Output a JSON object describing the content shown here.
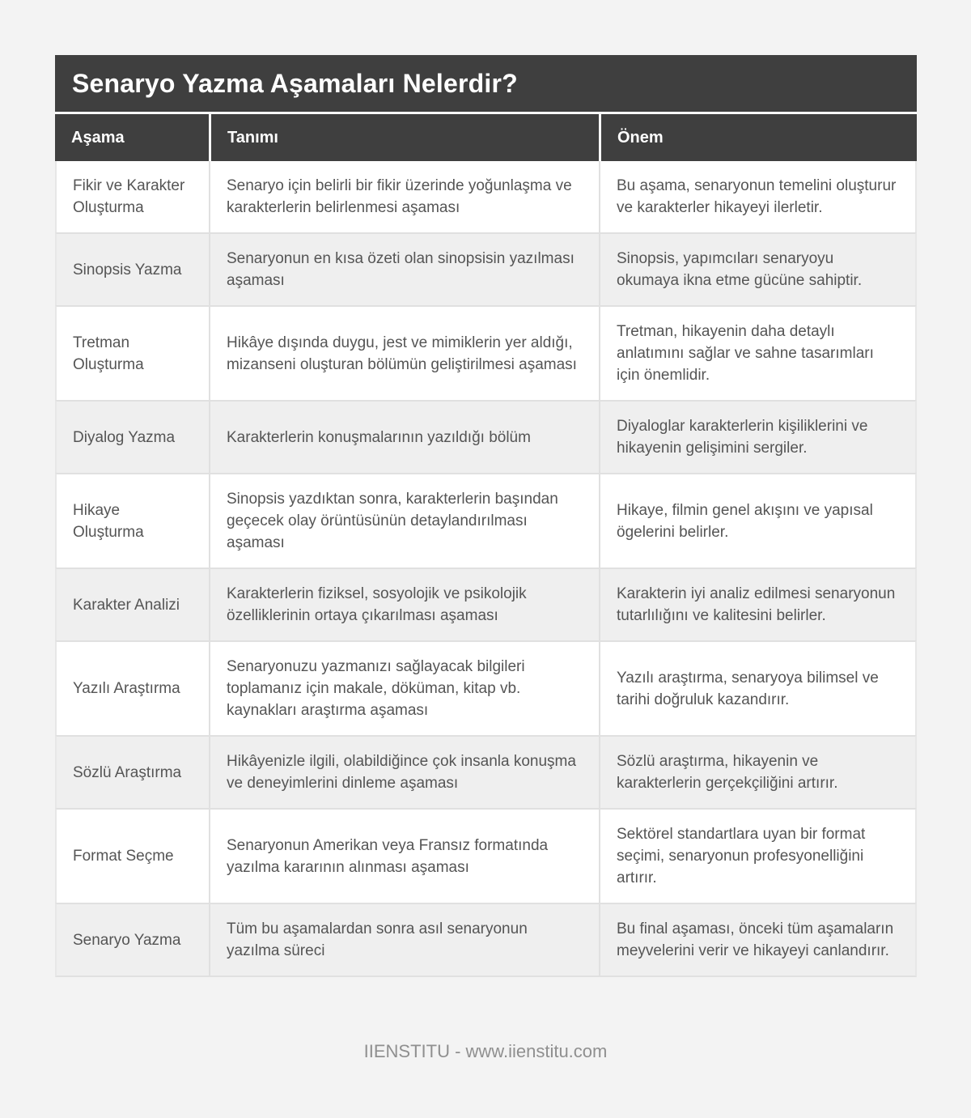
{
  "header": {
    "title": "Senaryo Yazma Aşamaları Nelerdir?"
  },
  "table": {
    "columns": [
      {
        "key": "asama",
        "label": "Aşama"
      },
      {
        "key": "tanimi",
        "label": "Tanımı"
      },
      {
        "key": "onem",
        "label": "Önem"
      }
    ],
    "rows": [
      {
        "asama": "Fikir ve Karakter Oluşturma",
        "tanimi": "Senaryo için belirli bir fikir üzerinde yoğunlaşma ve karakterlerin belirlenmesi aşaması",
        "onem": "Bu aşama, senaryonun temelini oluşturur ve karakterler hikayeyi ilerletir."
      },
      {
        "asama": "Sinopsis Yazma",
        "tanimi": "Senaryonun en kısa özeti olan sinopsisin yazılması aşaması",
        "onem": "Sinopsis, yapımcıları senaryoyu okumaya ikna etme gücüne sahiptir."
      },
      {
        "asama": "Tretman Oluşturma",
        "tanimi": "Hikâye dışında duygu, jest ve mimiklerin yer aldığı, mizanseni oluşturan bölümün geliştirilmesi aşaması",
        "onem": "Tretman, hikayenin daha detaylı anlatımını sağlar ve sahne tasarımları için önemlidir."
      },
      {
        "asama": "Diyalog Yazma",
        "tanimi": "Karakterlerin konuşmalarının yazıldığı bölüm",
        "onem": "Diyaloglar karakterlerin kişiliklerini ve hikayenin gelişimini sergiler."
      },
      {
        "asama": "Hikaye Oluşturma",
        "tanimi": "Sinopsis yazdıktan sonra, karakterlerin başından geçecek olay örüntüsünün detaylandırılması aşaması",
        "onem": "Hikaye, filmin genel akışını ve yapısal ögelerini belirler."
      },
      {
        "asama": "Karakter Analizi",
        "tanimi": "Karakterlerin fiziksel, sosyolojik ve psikolojik özelliklerinin ortaya çıkarılması aşaması",
        "onem": "Karakterin iyi analiz edilmesi senaryonun tutarlılığını ve kalitesini belirler."
      },
      {
        "asama": "Yazılı Araştırma",
        "tanimi": "Senaryonuzu yazmanızı sağlayacak bilgileri toplamanız için makale, döküman, kitap vb. kaynakları araştırma aşaması",
        "onem": "Yazılı araştırma, senaryoya bilimsel ve tarihi doğruluk kazandırır."
      },
      {
        "asama": "Sözlü Araştırma",
        "tanimi": "Hikâyenizle ilgili, olabildiğince çok insanla konuşma ve deneyimlerini dinleme aşaması",
        "onem": "Sözlü araştırma, hikayenin ve karakterlerin gerçekçiliğini artırır."
      },
      {
        "asama": "Format Seçme",
        "tanimi": "Senaryonun Amerikan veya Fransız formatında yazılma kararının alınması aşaması",
        "onem": "Sektörel standartlara uyan bir format seçimi, senaryonun profesyonelliğini artırır."
      },
      {
        "asama": "Senaryo Yazma",
        "tanimi": "Tüm bu aşamalardan sonra asıl senaryonun yazılma süreci",
        "onem": "Bu final aşaması, önceki tüm aşamaların meyvelerini verir ve hikayeyi canlandırır."
      }
    ]
  },
  "footer": {
    "text": "IIENSTITU - www.iienstitu.com"
  },
  "colors": {
    "page_bg": "#f3f3f3",
    "header_bg": "#3f3f3f",
    "header_text": "#ffffff",
    "row_bg": "#ffffff",
    "row_alt_bg": "#efefef",
    "body_text": "#555555",
    "border": "#e0e0e0",
    "footer_text": "#8f8f8f"
  }
}
